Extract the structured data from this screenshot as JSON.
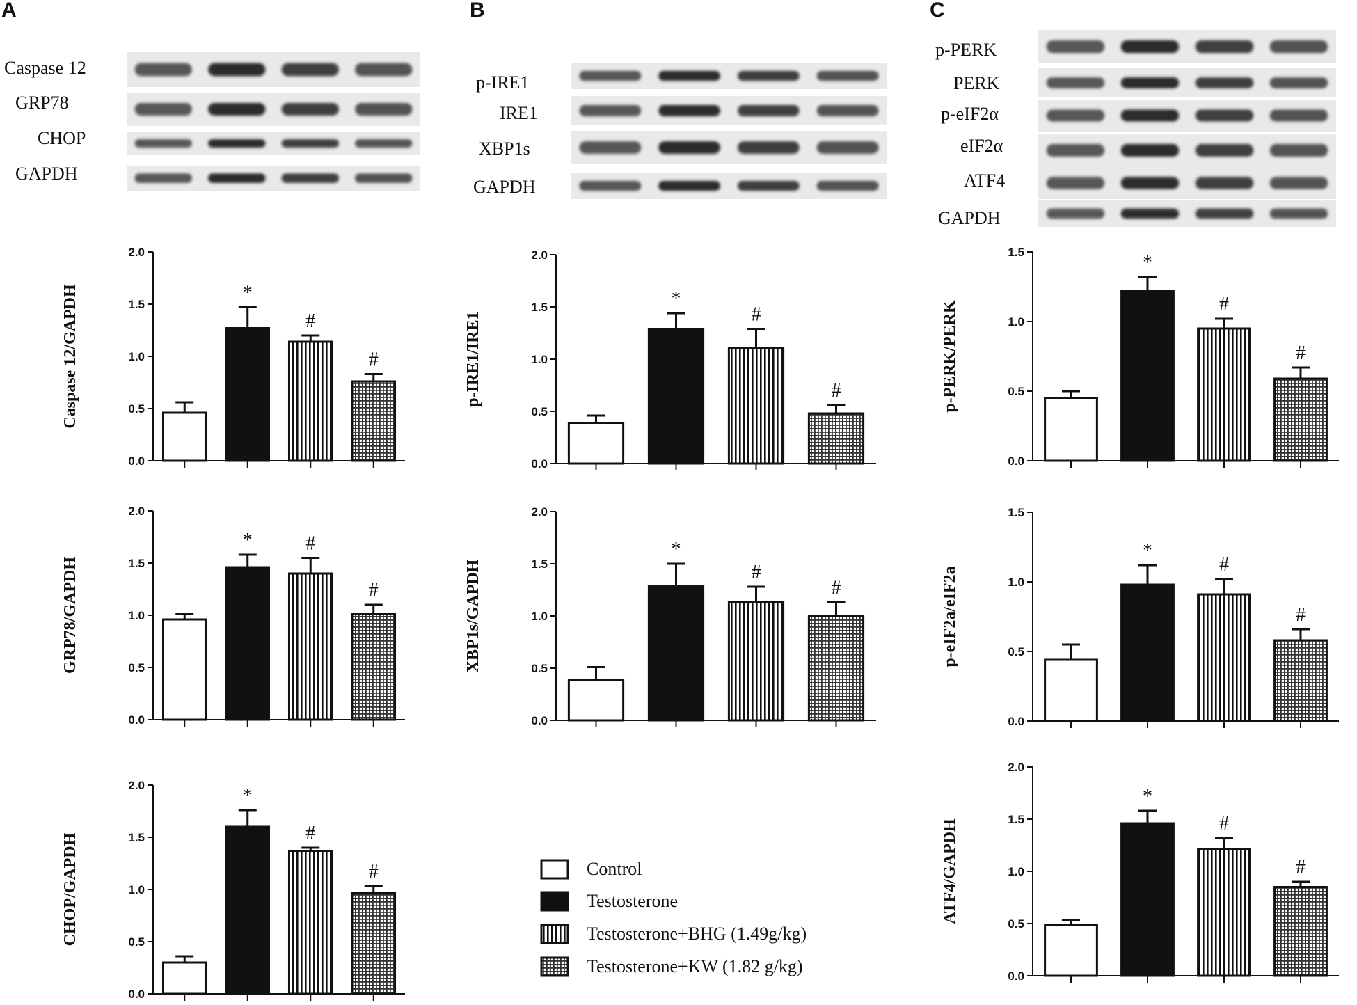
{
  "panels": [
    {
      "letter": "A",
      "blot": {
        "labels": [
          "Caspase 12",
          "GRP78",
          "CHOP",
          "GAPDH"
        ]
      }
    },
    {
      "letter": "B",
      "blot": {
        "labels": [
          "p-IRE1",
          "IRE1",
          "XBP1s",
          "GAPDH"
        ]
      }
    },
    {
      "letter": "C",
      "blot": {
        "labels": [
          "p-PERK",
          "PERK",
          "p-eIF2α",
          "eIF2α",
          "ATF4",
          "GAPDH"
        ]
      }
    }
  ],
  "legend": {
    "items": [
      {
        "label": "Control",
        "pattern": "open"
      },
      {
        "label": "Testosterone",
        "pattern": "solid"
      },
      {
        "label": "Testosterone+BHG (1.49g/kg)",
        "pattern": "vertical"
      },
      {
        "label": "Testosterone+KW (1.82 g/kg)",
        "pattern": "grid"
      }
    ]
  },
  "chart_data": [
    {
      "type": "bar",
      "panel": "A",
      "ylabel": "Caspase 12/GAPDH",
      "ylim": [
        0,
        2.0
      ],
      "yticks": [
        "0.0",
        "0.5",
        "1.0",
        "1.5",
        "2.0"
      ],
      "categories": [
        "Control",
        "Testosterone",
        "Testosterone+BHG (1.49g/kg)",
        "Testosterone+KW (1.82 g/kg)"
      ],
      "values": [
        0.46,
        1.27,
        1.14,
        0.76
      ],
      "errors": [
        0.1,
        0.2,
        0.06,
        0.07
      ],
      "annotations": [
        "",
        "*",
        "#",
        "#"
      ]
    },
    {
      "type": "bar",
      "panel": "A",
      "ylabel": "GRP78/GAPDH",
      "ylim": [
        0,
        2.0
      ],
      "yticks": [
        "0.0",
        "0.5",
        "1.0",
        "1.5",
        "2.0"
      ],
      "categories": [
        "Control",
        "Testosterone",
        "Testosterone+BHG (1.49g/kg)",
        "Testosterone+KW (1.82 g/kg)"
      ],
      "values": [
        0.96,
        1.46,
        1.4,
        1.01
      ],
      "errors": [
        0.05,
        0.12,
        0.15,
        0.09
      ],
      "annotations": [
        "",
        "*",
        "#",
        "#"
      ]
    },
    {
      "type": "bar",
      "panel": "A",
      "ylabel": "CHOP/GAPDH",
      "ylim": [
        0,
        2.0
      ],
      "yticks": [
        "0.0",
        "0.5",
        "1.0",
        "1.5",
        "2.0"
      ],
      "categories": [
        "Control",
        "Testosterone",
        "Testosterone+BHG (1.49g/kg)",
        "Testosterone+KW (1.82 g/kg)"
      ],
      "values": [
        0.3,
        1.6,
        1.37,
        0.97
      ],
      "errors": [
        0.06,
        0.16,
        0.03,
        0.06
      ],
      "annotations": [
        "",
        "*",
        "#",
        "#"
      ]
    },
    {
      "type": "bar",
      "panel": "B",
      "ylabel": "p-IRE1/IRE1",
      "ylim": [
        0,
        2.0
      ],
      "yticks": [
        "0.0",
        "0.5",
        "1.0",
        "1.5",
        "2.0"
      ],
      "categories": [
        "Control",
        "Testosterone",
        "Testosterone+BHG (1.49g/kg)",
        "Testosterone+KW (1.82 g/kg)"
      ],
      "values": [
        0.39,
        1.29,
        1.11,
        0.48
      ],
      "errors": [
        0.07,
        0.15,
        0.18,
        0.08
      ],
      "annotations": [
        "",
        "*",
        "#",
        "#"
      ]
    },
    {
      "type": "bar",
      "panel": "B",
      "ylabel": "XBP1s/GAPDH",
      "ylim": [
        0,
        2.0
      ],
      "yticks": [
        "0.0",
        "0.5",
        "1.0",
        "1.5",
        "2.0"
      ],
      "categories": [
        "Control",
        "Testosterone",
        "Testosterone+BHG (1.49g/kg)",
        "Testosterone+KW (1.82 g/kg)"
      ],
      "values": [
        0.39,
        1.29,
        1.13,
        1.0
      ],
      "errors": [
        0.12,
        0.21,
        0.15,
        0.13
      ],
      "annotations": [
        "",
        "*",
        "#",
        "#"
      ]
    },
    {
      "type": "bar",
      "panel": "C",
      "ylabel": "p-PERK/PERK",
      "ylim": [
        0,
        1.5
      ],
      "yticks": [
        "0.0",
        "0.5",
        "1.0",
        "1.5"
      ],
      "categories": [
        "Control",
        "Testosterone",
        "Testosterone+BHG (1.49g/kg)",
        "Testosterone+KW (1.82 g/kg)"
      ],
      "values": [
        0.45,
        1.22,
        0.95,
        0.59
      ],
      "errors": [
        0.05,
        0.1,
        0.07,
        0.08
      ],
      "annotations": [
        "",
        "*",
        "#",
        "#"
      ]
    },
    {
      "type": "bar",
      "panel": "C",
      "ylabel": "p-eIF2a/eIF2a",
      "ylim": [
        0,
        1.5
      ],
      "yticks": [
        "0.0",
        "0.5",
        "1.0",
        "1.5"
      ],
      "categories": [
        "Control",
        "Testosterone",
        "Testosterone+BHG (1.49g/kg)",
        "Testosterone+KW (1.82 g/kg)"
      ],
      "values": [
        0.44,
        0.98,
        0.91,
        0.58
      ],
      "errors": [
        0.11,
        0.14,
        0.11,
        0.08
      ],
      "annotations": [
        "",
        "*",
        "#",
        "#"
      ]
    },
    {
      "type": "bar",
      "panel": "C",
      "ylabel": "ATF4/GAPDH",
      "ylim": [
        0,
        2.0
      ],
      "yticks": [
        "0.0",
        "0.5",
        "1.0",
        "1.5",
        "2.0"
      ],
      "categories": [
        "Control",
        "Testosterone",
        "Testosterone+BHG (1.49g/kg)",
        "Testosterone+KW (1.82 g/kg)"
      ],
      "values": [
        0.49,
        1.46,
        1.21,
        0.85
      ],
      "errors": [
        0.04,
        0.12,
        0.11,
        0.05
      ],
      "annotations": [
        "",
        "*",
        "#",
        "#"
      ]
    }
  ]
}
